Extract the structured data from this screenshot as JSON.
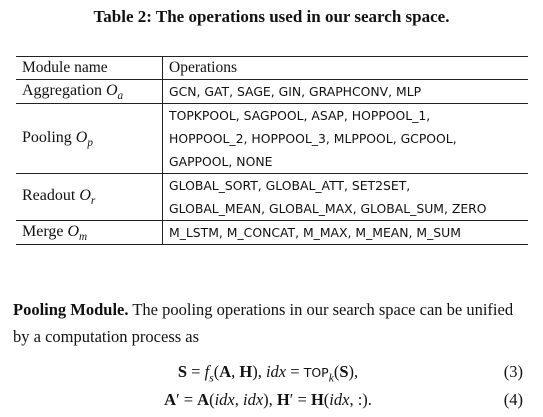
{
  "caption": "Table 2: The operations used in our search space.",
  "table": {
    "headers": {
      "module": "Module name",
      "operations": "Operations"
    },
    "rows": [
      {
        "module": "Aggregation",
        "symbol": "O",
        "subscript": "a",
        "lines": [
          "GCN, GAT, SAGE, GIN, GRAPHCONV, MLP"
        ]
      },
      {
        "module": "Pooling",
        "symbol": "O",
        "subscript": "p",
        "lines": [
          "TOPKPOOL, SAGPOOL, ASAP, HOPPOOL_1,",
          "HOPPOOL_2, HOPPOOL_3, MLPPOOL, GCPOOL,",
          "GAPPOOL, NONE"
        ]
      },
      {
        "module": "Readout",
        "symbol": "O",
        "subscript": "r",
        "lines": [
          "GLOBAL_SORT, GLOBAL_ATT, SET2SET,",
          "GLOBAL_MEAN, GLOBAL_MAX, GLOBAL_SUM, ZERO"
        ]
      },
      {
        "module": "Merge",
        "symbol": "O",
        "subscript": "m",
        "lines": [
          "M_LSTM, M_CONCAT, M_MAX, M_MEAN, M_SUM"
        ]
      }
    ]
  },
  "paragraph": {
    "heading": "Pooling Module.",
    "text": "The pooling operations in our search space can be unified by a computation process as"
  },
  "equations": [
    {
      "number": "(3)"
    },
    {
      "number": "(4)"
    }
  ]
}
